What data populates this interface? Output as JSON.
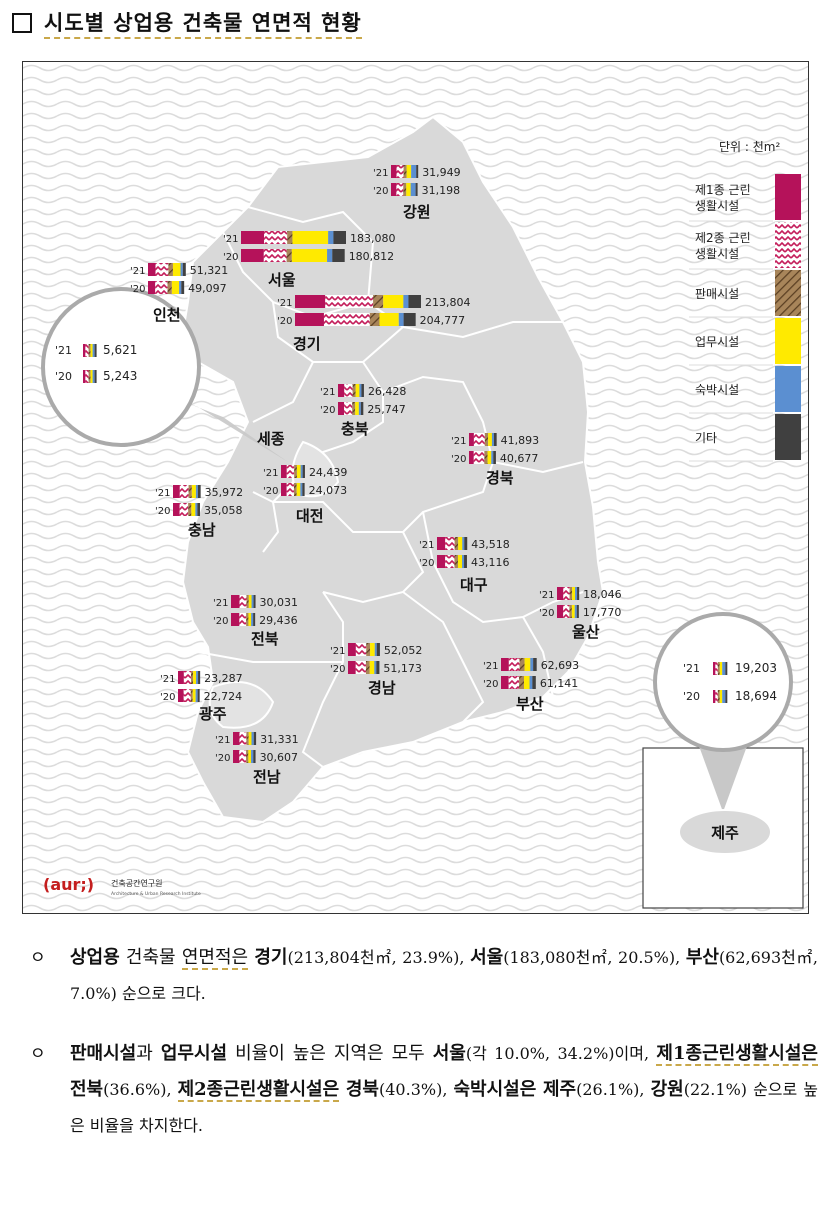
{
  "title": "시도별 상업용 건축물 연면적 현황",
  "map": {
    "unit_label": "단위 : 천m²",
    "legend": [
      {
        "label1": "제1종 근린",
        "label2": "생활시설",
        "color": "#b5125a",
        "pattern": "solid"
      },
      {
        "label1": "제2종 근린",
        "label2": "생활시설",
        "color": "#c41e5b",
        "pattern": "zigzag"
      },
      {
        "label1": "판매시설",
        "label2": "",
        "color": "#8a6a40",
        "pattern": "hatch"
      },
      {
        "label1": "업무시설",
        "label2": "",
        "color": "#ffea00",
        "pattern": "solid"
      },
      {
        "label1": "숙박시설",
        "label2": "",
        "color": "#5b8fd1",
        "pattern": "solid"
      },
      {
        "label1": "기타",
        "label2": "",
        "color": "#404040",
        "pattern": "solid"
      }
    ],
    "regions": [
      {
        "name": "강원",
        "v21": "31,949",
        "v20": "31,198"
      },
      {
        "name": "서울",
        "v21": "183,080",
        "v20": "180,812"
      },
      {
        "name": "인천",
        "v21": "51,321",
        "v20": "49,097"
      },
      {
        "name": "경기",
        "v21": "213,804",
        "v20": "204,777"
      },
      {
        "name": "세종",
        "v21": "5,621",
        "v20": "5,243"
      },
      {
        "name": "충북",
        "v21": "26,428",
        "v20": "25,747"
      },
      {
        "name": "경북",
        "v21": "41,893",
        "v20": "40,677"
      },
      {
        "name": "충남",
        "v21": "35,972",
        "v20": "35,058"
      },
      {
        "name": "대전",
        "v21": "24,439",
        "v20": "24,073"
      },
      {
        "name": "대구",
        "v21": "43,518",
        "v20": "43,116"
      },
      {
        "name": "울산",
        "v21": "18,046",
        "v20": "17,770"
      },
      {
        "name": "전북",
        "v21": "30,031",
        "v20": "29,436"
      },
      {
        "name": "경남",
        "v21": "52,052",
        "v20": "51,173"
      },
      {
        "name": "부산",
        "v21": "62,693",
        "v20": "61,141"
      },
      {
        "name": "광주",
        "v21": "23,287",
        "v20": "22,724"
      },
      {
        "name": "전남",
        "v21": "31,331",
        "v20": "30,607"
      },
      {
        "name": "제주",
        "v21": "19,203",
        "v20": "18,694"
      }
    ],
    "year21": "'21",
    "year20": "'20",
    "logo": {
      "text": "(aur;)",
      "name": "건축공간연구원",
      "sub": "Architecture & Urban Research Institute"
    }
  },
  "bullets": [
    {
      "marker": "ㅇ",
      "p1_a": "상업용",
      "p1_b": " 건축물 ",
      "p1_c": "연면적은",
      "p1_d": " ",
      "p1_e": "경기",
      "p1_f": "(213,804천㎡, 23.9%), ",
      "p1_g": "서울",
      "p1_h": "(183,080천㎡, 20.5%), ",
      "p1_i": "부산",
      "p1_j": "(62,693천㎡, 7.0%) 순으로 크다."
    },
    {
      "marker": "ㅇ",
      "p2_a": "판매시설",
      "p2_b": "과 ",
      "p2_c": "업무시설",
      "p2_d": " 비율이 높은 지역은 모두 ",
      "p2_e": "서울",
      "p2_f": "(각 10.0%, 34.2%)이며, ",
      "p2_g": "제1종근린생활시설은",
      "p2_h": " ",
      "p2_i": "전북",
      "p2_j": "(36.6%), ",
      "p2_k": "제2종근린생활시설은",
      "p2_l": " ",
      "p2_m": "경북",
      "p2_n": "(40.3%), ",
      "p2_o": "숙박시설은",
      "p2_p": " ",
      "p2_q": "제주",
      "p2_r": "(26.1%), ",
      "p2_s": "강원",
      "p2_t": "(22.1%) 순으로 높은 비율을 차지한다."
    }
  ]
}
